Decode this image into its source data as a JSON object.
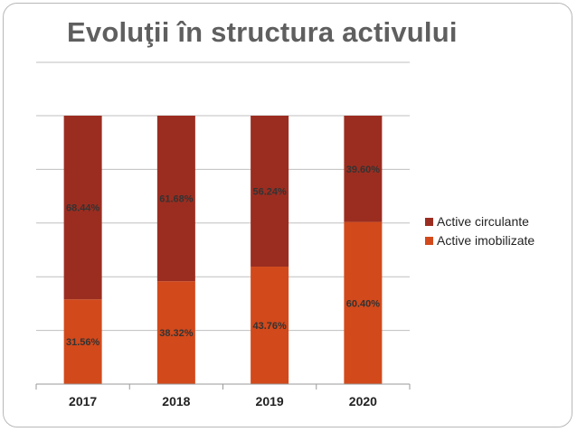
{
  "slide": {
    "title": "Evoluţii în structura activului"
  },
  "colors": {
    "circulante": "#9b2d20",
    "imobilizate": "#d2491b",
    "grid": "#bfbfbf",
    "axis": "#9a9a9a"
  },
  "chart_data": {
    "type": "bar",
    "stacked": true,
    "percent_stacked": true,
    "categories": [
      "2017",
      "2018",
      "2019",
      "2020"
    ],
    "series": [
      {
        "name": "Active imobilizate",
        "values": [
          31.56,
          38.32,
          43.76,
          60.4
        ],
        "labels": [
          "31.56%",
          "38.32%",
          "43.76%",
          "60.40%"
        ]
      },
      {
        "name": "Active circulante",
        "values": [
          68.44,
          61.68,
          56.24,
          39.6
        ],
        "labels": [
          "68.44%",
          "61.68%",
          "56.24%",
          "39.60%"
        ]
      }
    ],
    "ylim": [
      0,
      100
    ],
    "grid": true,
    "legend_position": "right",
    "legend_order": [
      "Active circulante",
      "Active imobilizate"
    ]
  }
}
